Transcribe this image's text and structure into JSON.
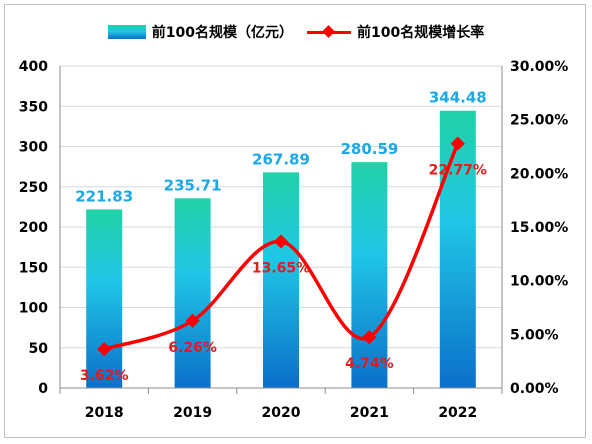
{
  "legend": {
    "bar_label": "前100名规模（亿元）",
    "line_label": "前100名规模增长率"
  },
  "chart_data": {
    "type": "bar",
    "categories": [
      "2018",
      "2019",
      "2020",
      "2021",
      "2022"
    ],
    "series": [
      {
        "name": "前100名规模（亿元）",
        "type": "bar",
        "axis": "left",
        "values": [
          221.83,
          235.71,
          267.89,
          280.59,
          344.48
        ],
        "labels": [
          "221.83",
          "235.71",
          "267.89",
          "280.59",
          "344.48"
        ]
      },
      {
        "name": "前100名规模增长率",
        "type": "line",
        "axis": "right",
        "values": [
          3.62,
          6.26,
          13.65,
          4.74,
          22.77
        ],
        "labels": [
          "3.62%",
          "6.26%",
          "13.65%",
          "4.74%",
          "22.77%"
        ]
      }
    ],
    "y_left": {
      "min": 0,
      "max": 400,
      "ticks": [
        "0",
        "50",
        "100",
        "150",
        "200",
        "250",
        "300",
        "350",
        "400"
      ]
    },
    "y_right": {
      "min": 0,
      "max": 30,
      "ticks": [
        "0.00%",
        "5.00%",
        "10.00%",
        "15.00%",
        "20.00%",
        "25.00%",
        "30.00%"
      ]
    },
    "grid": true,
    "legend_position": "top",
    "colors": {
      "bar_top": "#1fd2a6",
      "bar_mid": "#20c6e6",
      "bar_bottom": "#0b6fc9",
      "line": "#ff0000",
      "bar_label": "#1aa9e8",
      "line_label": "#e41b1b"
    }
  }
}
